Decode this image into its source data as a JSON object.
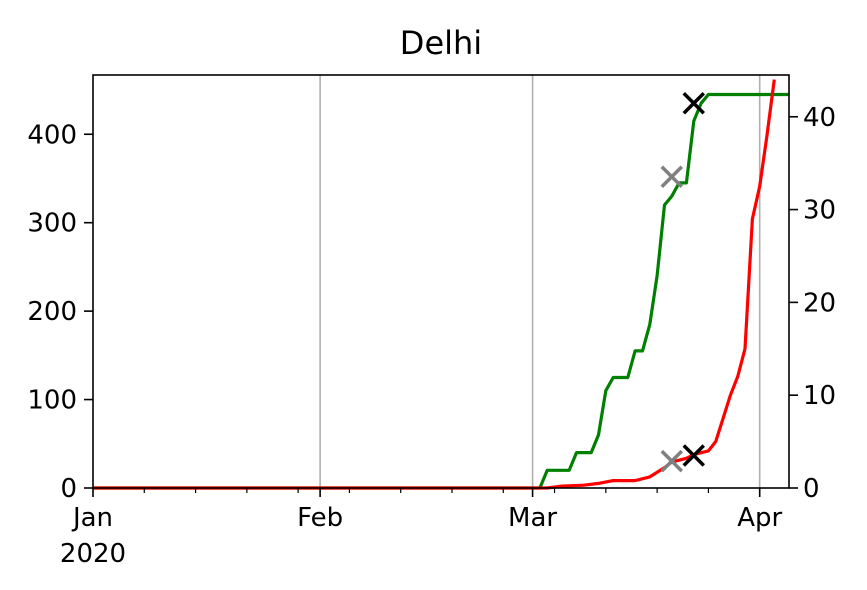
{
  "chart_data": {
    "type": "line",
    "title": "Delhi",
    "xlabel": "",
    "ylabel_left": "",
    "ylabel_right": "",
    "x_range": [
      "2020-01-01",
      "2020-04-05"
    ],
    "ylim_left": [
      0,
      467
    ],
    "ylim_right": [
      0,
      44.5
    ],
    "grid": "vertical at month ticks",
    "legend": "none",
    "x_ticks": [
      {
        "date": "2020-01-01",
        "label": "Jan",
        "sublabel": "2020"
      },
      {
        "date": "2020-02-01",
        "label": "Feb",
        "sublabel": ""
      },
      {
        "date": "2020-03-01",
        "label": "Mar",
        "sublabel": ""
      },
      {
        "date": "2020-04-01",
        "label": "Apr",
        "sublabel": ""
      }
    ],
    "y_ticks_left": [
      0,
      100,
      200,
      300,
      400
    ],
    "y_ticks_right": [
      0,
      10,
      20,
      30,
      40
    ],
    "series": [
      {
        "color": "#008000",
        "axis": "left",
        "points": [
          [
            "2020-01-01",
            0
          ],
          [
            "2020-03-02",
            0
          ],
          [
            "2020-03-03",
            20
          ],
          [
            "2020-03-06",
            20
          ],
          [
            "2020-03-07",
            40
          ],
          [
            "2020-03-09",
            40
          ],
          [
            "2020-03-10",
            60
          ],
          [
            "2020-03-11",
            110
          ],
          [
            "2020-03-12",
            125
          ],
          [
            "2020-03-14",
            125
          ],
          [
            "2020-03-15",
            155
          ],
          [
            "2020-03-16",
            155
          ],
          [
            "2020-03-17",
            185
          ],
          [
            "2020-03-18",
            240
          ],
          [
            "2020-03-19",
            320
          ],
          [
            "2020-03-20",
            330
          ],
          [
            "2020-03-21",
            345
          ],
          [
            "2020-03-22",
            345
          ],
          [
            "2020-03-23",
            415
          ],
          [
            "2020-03-24",
            435
          ],
          [
            "2020-03-25",
            445
          ],
          [
            "2020-04-05",
            445
          ]
        ]
      },
      {
        "color": "#ff0000",
        "axis": "right",
        "points": [
          [
            "2020-01-01",
            0
          ],
          [
            "2020-03-03",
            0
          ],
          [
            "2020-03-05",
            0.2
          ],
          [
            "2020-03-08",
            0.3
          ],
          [
            "2020-03-10",
            0.5
          ],
          [
            "2020-03-12",
            0.8
          ],
          [
            "2020-03-15",
            0.8
          ],
          [
            "2020-03-17",
            1.2
          ],
          [
            "2020-03-19",
            2.2
          ],
          [
            "2020-03-20",
            2.8
          ],
          [
            "2020-03-22",
            3.2
          ],
          [
            "2020-03-23",
            3.6
          ],
          [
            "2020-03-24",
            3.8
          ],
          [
            "2020-03-25",
            4.0
          ],
          [
            "2020-03-26",
            5.0
          ],
          [
            "2020-03-27",
            7.5
          ],
          [
            "2020-03-28",
            10.0
          ],
          [
            "2020-03-29",
            12.0
          ],
          [
            "2020-03-30",
            15.0
          ],
          [
            "2020-03-31",
            29.0
          ],
          [
            "2020-04-01",
            32.5
          ],
          [
            "2020-04-02",
            38.0
          ],
          [
            "2020-04-03",
            44.0
          ]
        ]
      }
    ],
    "markers": [
      {
        "date": "2020-03-20",
        "value": 352,
        "axis": "left",
        "color": "#808080",
        "symbol": "x"
      },
      {
        "date": "2020-03-23",
        "value": 435,
        "axis": "left",
        "color": "#000000",
        "symbol": "x"
      },
      {
        "date": "2020-03-20",
        "value": 2.9,
        "axis": "right",
        "color": "#808080",
        "symbol": "x"
      },
      {
        "date": "2020-03-23",
        "value": 3.5,
        "axis": "right",
        "color": "#000000",
        "symbol": "x"
      }
    ]
  }
}
